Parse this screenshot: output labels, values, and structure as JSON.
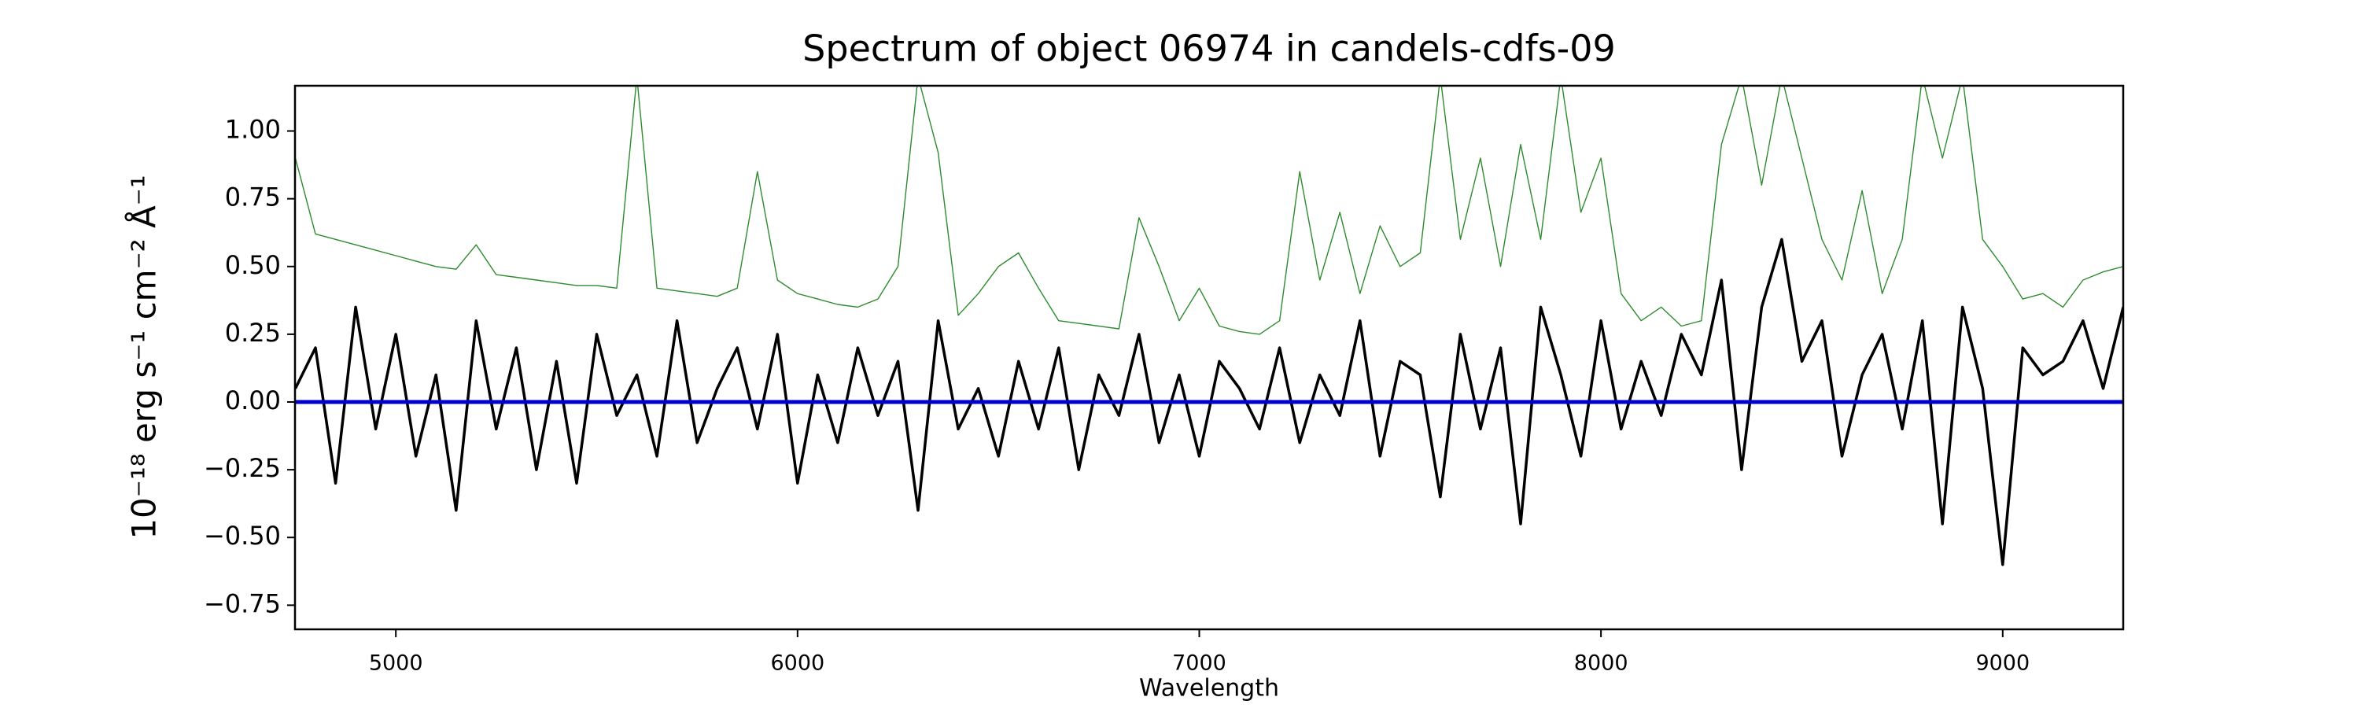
{
  "chart_data": {
    "type": "line",
    "title": "Spectrum of object 06974 in candels-cdfs-09",
    "x_label": "Wavelength",
    "y_label": "10⁻¹⁸ erg s⁻¹ cm⁻² Å⁻¹",
    "x": [
      4750,
      4800,
      4850,
      4900,
      4950,
      5000,
      5050,
      5100,
      5150,
      5200,
      5250,
      5300,
      5350,
      5400,
      5450,
      5500,
      5550,
      5600,
      5650,
      5700,
      5750,
      5800,
      5850,
      5900,
      5950,
      6000,
      6050,
      6100,
      6150,
      6200,
      6250,
      6300,
      6350,
      6400,
      6450,
      6500,
      6550,
      6600,
      6650,
      6700,
      6750,
      6800,
      6850,
      6900,
      6950,
      7000,
      7050,
      7100,
      7150,
      7200,
      7250,
      7300,
      7350,
      7400,
      7450,
      7500,
      7550,
      7600,
      7650,
      7700,
      7750,
      7800,
      7850,
      7900,
      7950,
      8000,
      8050,
      8100,
      8150,
      8200,
      8250,
      8300,
      8350,
      8400,
      8450,
      8500,
      8550,
      8600,
      8650,
      8700,
      8750,
      8800,
      8850,
      8900,
      8950,
      9000,
      9050,
      9100,
      9150,
      9200,
      9250,
      9300
    ],
    "series": [
      {
        "color": "#2e8b2e",
        "width": 1.4,
        "values": [
          0.9,
          0.62,
          0.6,
          0.58,
          0.56,
          0.54,
          0.52,
          0.5,
          0.49,
          0.58,
          0.47,
          0.46,
          0.45,
          0.44,
          0.43,
          0.43,
          0.42,
          1.2,
          0.42,
          0.41,
          0.4,
          0.39,
          0.42,
          0.85,
          0.45,
          0.4,
          0.38,
          0.36,
          0.35,
          0.38,
          0.5,
          1.2,
          0.92,
          0.32,
          0.4,
          0.5,
          0.55,
          0.42,
          0.3,
          0.29,
          0.28,
          0.27,
          0.68,
          0.5,
          0.3,
          0.42,
          0.28,
          0.26,
          0.25,
          0.3,
          0.85,
          0.45,
          0.7,
          0.4,
          0.65,
          0.5,
          0.55,
          1.2,
          0.6,
          0.9,
          0.5,
          0.95,
          0.6,
          1.2,
          0.7,
          0.9,
          0.4,
          0.3,
          0.35,
          0.28,
          0.3,
          0.95,
          1.2,
          0.8,
          1.2,
          0.9,
          0.6,
          0.45,
          0.78,
          0.4,
          0.6,
          1.2,
          0.9,
          1.2,
          0.6,
          0.5,
          0.38,
          0.4,
          0.35,
          0.45,
          0.48,
          0.5
        ]
      },
      {
        "color": "#000000",
        "width": 3.5,
        "values": [
          0.05,
          0.2,
          -0.3,
          0.35,
          -0.1,
          0.25,
          -0.2,
          0.1,
          -0.4,
          0.3,
          -0.1,
          0.2,
          -0.25,
          0.15,
          -0.3,
          0.25,
          -0.05,
          0.1,
          -0.2,
          0.3,
          -0.15,
          0.05,
          0.2,
          -0.1,
          0.25,
          -0.3,
          0.1,
          -0.15,
          0.2,
          -0.05,
          0.15,
          -0.4,
          0.3,
          -0.1,
          0.05,
          -0.2,
          0.15,
          -0.1,
          0.2,
          -0.25,
          0.1,
          -0.05,
          0.25,
          -0.15,
          0.1,
          -0.2,
          0.15,
          0.05,
          -0.1,
          0.2,
          -0.15,
          0.1,
          -0.05,
          0.3,
          -0.2,
          0.15,
          0.1,
          -0.35,
          0.25,
          -0.1,
          0.2,
          -0.45,
          0.35,
          0.1,
          -0.2,
          0.3,
          -0.1,
          0.15,
          -0.05,
          0.25,
          0.1,
          0.45,
          -0.25,
          0.35,
          0.6,
          0.15,
          0.3,
          -0.2,
          0.1,
          0.25,
          -0.1,
          0.3,
          -0.45,
          0.35,
          0.05,
          -0.6,
          0.2,
          0.1,
          0.15,
          0.3,
          0.05,
          0.35
        ]
      },
      {
        "color": "#0000cc",
        "width": 5,
        "x": [
          4750,
          9300
        ],
        "values": [
          0,
          0
        ]
      }
    ],
    "xlim": [
      4749,
      9300
    ],
    "ylim": [
      -0.839,
      1.167
    ],
    "xticks": [
      5000,
      6000,
      7000,
      8000,
      9000
    ],
    "yticks": [
      {
        "value": -0.75,
        "label": "−0.75"
      },
      {
        "value": -0.5,
        "label": "−0.50"
      },
      {
        "value": -0.25,
        "label": "−0.25"
      },
      {
        "value": 0,
        "label": "0.00"
      },
      {
        "value": 0.25,
        "label": "0.25"
      },
      {
        "value": 0.5,
        "label": "0.50"
      },
      {
        "value": 0.75,
        "label": "0.75"
      },
      {
        "value": 1,
        "label": "1.00"
      }
    ]
  }
}
